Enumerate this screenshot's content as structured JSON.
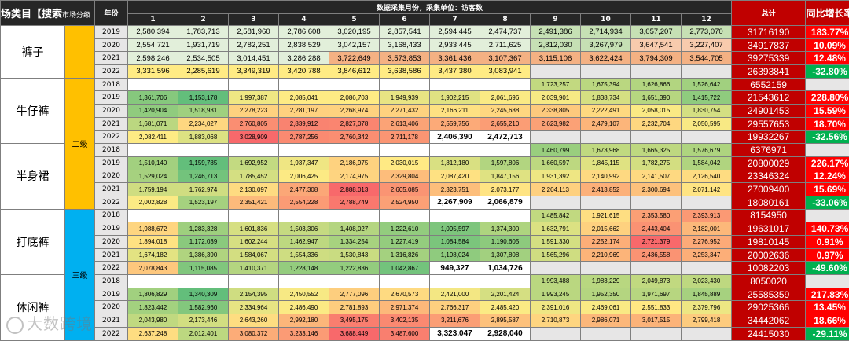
{
  "header": {
    "market_category": "场类目【搜索",
    "market_level": "市场分级",
    "year": "年份",
    "span_title": "数据采集月份，采集单位：访客数",
    "months": [
      "1",
      "2",
      "3",
      "4",
      "5",
      "6",
      "7",
      "8",
      "9",
      "10",
      "11",
      "12"
    ],
    "total": "总计",
    "yoy": "同比增长率"
  },
  "levels": {
    "level2": "二级",
    "level3": "三级"
  },
  "categories": [
    {
      "name": "裤子",
      "rows": [
        {
          "year": "2019",
          "values": [
            "2,580,394",
            "1,783,713",
            "2,581,960",
            "2,786,608",
            "3,020,195",
            "2,857,541",
            "2,594,445",
            "2,474,737",
            "2,491,386",
            "2,714,934",
            "3,057,207",
            "2,773,070"
          ],
          "total": "31716190",
          "rate": "183.77%"
        },
        {
          "year": "2020",
          "values": [
            "2,554,721",
            "1,931,719",
            "2,782,251",
            "2,838,529",
            "3,042,157",
            "3,168,433",
            "2,933,445",
            "2,711,625",
            "2,812,030",
            "3,267,979",
            "3,647,541",
            "3,227,407"
          ],
          "total": "34917837",
          "rate": "10.09%"
        },
        {
          "year": "2021",
          "values": [
            "2,598,246",
            "2,534,505",
            "3,014,451",
            "3,286,288",
            "3,722,649",
            "3,573,853",
            "3,361,436",
            "3,107,367",
            "3,115,106",
            "3,622,424",
            "3,794,309",
            "3,544,705"
          ],
          "total": "39275339",
          "rate": "12.48%"
        },
        {
          "year": "2022",
          "values": [
            "3,331,596",
            "2,285,619",
            "3,349,319",
            "3,420,788",
            "3,846,612",
            "3,638,586",
            "3,437,380",
            "3,083,941",
            "",
            "",
            "",
            ""
          ],
          "total": "26393841",
          "rate": "-32.80%"
        }
      ]
    },
    {
      "name": "牛仔裤",
      "rows": [
        {
          "year": "2018",
          "values": [
            "",
            "",
            "",
            "",
            "",
            "",
            "",
            "",
            "1,723,257",
            "1,675,394",
            "1,626,866",
            "1,526,642"
          ],
          "total": "6552159",
          "rate": ""
        },
        {
          "year": "2019",
          "values": [
            "1,361,706",
            "1,153,178",
            "1,997,387",
            "2,085,041",
            "2,086,703",
            "1,949,939",
            "1,902,215",
            "2,061,696",
            "2,039,901",
            "1,838,734",
            "1,651,390",
            "1,415,722"
          ],
          "total": "21543612",
          "rate": "228.80%"
        },
        {
          "year": "2020",
          "values": [
            "1,420,904",
            "1,518,931",
            "2,278,223",
            "2,281,197",
            "2,268,974",
            "2,271,432",
            "2,166,211",
            "2,245,688",
            "2,338,805",
            "2,222,491",
            "2,058,015",
            "1,830,754"
          ],
          "total": "24901453",
          "rate": "15.59%"
        },
        {
          "year": "2021",
          "values": [
            "1,681,071",
            "2,234,027",
            "2,760,805",
            "2,839,912",
            "2,827,078",
            "2,613,406",
            "2,559,756",
            "2,655,210",
            "2,623,982",
            "2,479,107",
            "2,232,704",
            "2,050,595"
          ],
          "total": "29557653",
          "rate": "18.70%"
        },
        {
          "year": "2022",
          "values": [
            "2,082,411",
            "1,883,068",
            "3,028,909",
            "2,787,256",
            "2,760,342",
            "2,711,178",
            "2,406,390",
            "2,472,713",
            "",
            "",
            "",
            ""
          ],
          "total": "19932267",
          "rate": "-32.56%"
        }
      ]
    },
    {
      "name": "半身裙",
      "rows": [
        {
          "year": "2018",
          "values": [
            "",
            "",
            "",
            "",
            "",
            "",
            "",
            "",
            "1,460,799",
            "1,673,968",
            "1,665,325",
            "1,576,679"
          ],
          "total": "6376971",
          "rate": ""
        },
        {
          "year": "2019",
          "values": [
            "1,510,140",
            "1,159,785",
            "1,692,952",
            "1,937,347",
            "2,186,975",
            "2,030,015",
            "1,812,180",
            "1,597,806",
            "1,660,597",
            "1,845,115",
            "1,782,275",
            "1,584,042"
          ],
          "total": "20800029",
          "rate": "226.17%"
        },
        {
          "year": "2020",
          "values": [
            "1,529,024",
            "1,246,713",
            "1,785,452",
            "2,006,425",
            "2,174,975",
            "2,329,804",
            "2,087,420",
            "1,847,156",
            "1,931,392",
            "2,140,992",
            "2,141,507",
            "2,126,540"
          ],
          "total": "23346324",
          "rate": "12.24%"
        },
        {
          "year": "2021",
          "values": [
            "1,759,194",
            "1,762,974",
            "2,130,097",
            "2,477,308",
            "2,888,013",
            "2,605,085",
            "2,323,751",
            "2,073,177",
            "2,204,113",
            "2,413,852",
            "2,300,694",
            "2,071,142"
          ],
          "total": "27009400",
          "rate": "15.69%"
        },
        {
          "year": "2022",
          "values": [
            "2,002,828",
            "1,523,197",
            "2,351,421",
            "2,554,228",
            "2,788,749",
            "2,524,950",
            "2,267,909",
            "2,066,879",
            "",
            "",
            "",
            ""
          ],
          "total": "18080161",
          "rate": "-33.06%"
        }
      ]
    },
    {
      "name": "打底裤",
      "rows": [
        {
          "year": "2018",
          "values": [
            "",
            "",
            "",
            "",
            "",
            "",
            "",
            "",
            "1,485,842",
            "1,921,615",
            "2,353,580",
            "2,393,913"
          ],
          "total": "8154950",
          "rate": ""
        },
        {
          "year": "2019",
          "values": [
            "1,988,672",
            "1,283,328",
            "1,601,836",
            "1,503,306",
            "1,408,027",
            "1,222,610",
            "1,095,597",
            "1,374,300",
            "1,632,791",
            "2,015,662",
            "2,443,404",
            "2,182,001"
          ],
          "total": "19631017",
          "rate": "140.73%"
        },
        {
          "year": "2020",
          "values": [
            "1,894,018",
            "1,172,039",
            "1,602,244",
            "1,462,947",
            "1,334,254",
            "1,227,419",
            "1,084,584",
            "1,190,605",
            "1,591,330",
            "2,252,174",
            "2,721,379",
            "2,276,952"
          ],
          "total": "19810145",
          "rate": "0.91%"
        },
        {
          "year": "2021",
          "values": [
            "1,674,182",
            "1,386,390",
            "1,584,067",
            "1,554,336",
            "1,530,843",
            "1,316,826",
            "1,198,024",
            "1,307,808",
            "1,565,296",
            "2,210,969",
            "2,436,558",
            "2,253,347"
          ],
          "total": "20002636",
          "rate": "0.97%"
        },
        {
          "year": "2022",
          "values": [
            "2,078,843",
            "1,115,085",
            "1,410,371",
            "1,228,148",
            "1,222,836",
            "1,042,867",
            "949,327",
            "1,034,726",
            "",
            "",
            "",
            ""
          ],
          "total": "10082203",
          "rate": "-49.60%"
        }
      ]
    },
    {
      "name": "休闲裤",
      "rows": [
        {
          "year": "2018",
          "values": [
            "",
            "",
            "",
            "",
            "",
            "",
            "",
            "",
            "1,993,488",
            "1,983,229",
            "2,049,873",
            "2,023,430"
          ],
          "total": "8050020",
          "rate": ""
        },
        {
          "year": "2019",
          "values": [
            "1,806,829",
            "1,340,309",
            "2,154,395",
            "2,450,552",
            "2,777,096",
            "2,670,573",
            "2,421,000",
            "2,201,424",
            "1,993,245",
            "1,952,350",
            "1,971,697",
            "1,845,889"
          ],
          "total": "25585359",
          "rate": "217.83%"
        },
        {
          "year": "2020",
          "values": [
            "1,823,442",
            "1,582,960",
            "2,334,964",
            "2,486,490",
            "2,781,893",
            "2,971,374",
            "2,766,317",
            "2,485,420",
            "2,391,016",
            "2,469,061",
            "2,551,833",
            "2,379,796"
          ],
          "total": "29025366",
          "rate": "13.45%"
        },
        {
          "year": "2021",
          "values": [
            "2,043,980",
            "2,173,446",
            "2,643,260",
            "2,992,180",
            "3,495,175",
            "3,402,135",
            "3,211,676",
            "2,895,587",
            "2,710,873",
            "2,986,071",
            "3,017,515",
            "2,799,418"
          ],
          "total": "34442062",
          "rate": "18.66%"
        },
        {
          "year": "2022",
          "values": [
            "2,637,248",
            "2,012,401",
            "3,080,372",
            "3,233,146",
            "3,688,449",
            "3,487,600",
            "3,323,047",
            "2,928,040",
            "",
            "",
            "",
            ""
          ],
          "total": "24415030",
          "rate": "-29.11%"
        }
      ]
    }
  ],
  "watermark": "大数跨境",
  "colors": {
    "header_bg": "#262626",
    "total_bg": "#c00000",
    "rate_up": "#ff0000",
    "rate_down": "#00b050",
    "level2": "#ffc000",
    "level3": "#00b0f0",
    "year_bg": "#e7e6e6"
  }
}
